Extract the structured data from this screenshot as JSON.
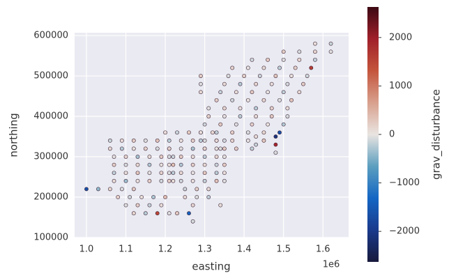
{
  "chart_data": {
    "type": "scatter",
    "xlabel": "easting",
    "ylabel": "northing",
    "x_offset_label": "1e6",
    "xlim": [
      970000,
      1665000
    ],
    "ylim": [
      100000,
      607000
    ],
    "xticks": [
      {
        "value": 1000000,
        "label": "1.0"
      },
      {
        "value": 1100000,
        "label": "1.1"
      },
      {
        "value": 1200000,
        "label": "1.2"
      },
      {
        "value": 1300000,
        "label": "1.3"
      },
      {
        "value": 1400000,
        "label": "1.4"
      },
      {
        "value": 1500000,
        "label": "1.5"
      },
      {
        "value": 1600000,
        "label": "1.6"
      }
    ],
    "yticks": [
      100000,
      200000,
      300000,
      400000,
      500000,
      600000
    ],
    "grid": true,
    "background": "#eaeaf2",
    "grid_color": "#ffffff",
    "edgecolor": "#3b2438",
    "colorbar": {
      "label": "grav_disturbance",
      "lim": [
        -2630,
        2630
      ],
      "ticks": [
        {
          "value": -2000,
          "label": "−2000"
        },
        {
          "value": -1000,
          "label": "−1000"
        },
        0,
        1000,
        2000
      ],
      "colors": [
        "#171a3c",
        "#1a3a8c",
        "#1466c4",
        "#5c9fbf",
        "#e9e4e1",
        "#d8a08d",
        "#c4553c",
        "#a0202a",
        "#3c0913"
      ]
    },
    "x": [
      1060000,
      1090000,
      1120000,
      1150000,
      1180000,
      1060000,
      1090000,
      1120000,
      1150000,
      1180000,
      1210000,
      1070000,
      1100000,
      1130000,
      1160000,
      1190000,
      1220000,
      1070000,
      1100000,
      1130000,
      1160000,
      1190000,
      1220000,
      1070000,
      1100000,
      1130000,
      1160000,
      1190000,
      1220000,
      1070000,
      1100000,
      1130000,
      1160000,
      1190000,
      1220000,
      1000000,
      1030000,
      1060000,
      1090000,
      1120000,
      1080000,
      1110000,
      1140000,
      1170000,
      1200000,
      1100000,
      1130000,
      1160000,
      1190000,
      1120000,
      1150000,
      1180000,
      1210000,
      1200000,
      1230000,
      1260000,
      1290000,
      1320000,
      1210000,
      1240000,
      1270000,
      1300000,
      1330000,
      1350000,
      1210000,
      1240000,
      1270000,
      1300000,
      1330000,
      1350000,
      1210000,
      1240000,
      1270000,
      1300000,
      1330000,
      1350000,
      1210000,
      1240000,
      1270000,
      1300000,
      1330000,
      1350000,
      1210000,
      1240000,
      1270000,
      1300000,
      1330000,
      1350000,
      1210000,
      1240000,
      1270000,
      1300000,
      1330000,
      1350000,
      1250000,
      1280000,
      1310000,
      1250000,
      1280000,
      1310000,
      1230000,
      1260000,
      1270000,
      1270000,
      1340000,
      1300000,
      1340000,
      1380000,
      1420000,
      1290000,
      1330000,
      1370000,
      1410000,
      1450000,
      1290000,
      1330000,
      1370000,
      1410000,
      1450000,
      1490000,
      1300000,
      1340000,
      1380000,
      1420000,
      1460000,
      1500000,
      1310000,
      1350000,
      1390000,
      1430000,
      1470000,
      1510000,
      1310000,
      1350000,
      1390000,
      1430000,
      1470000,
      1510000,
      1330000,
      1370000,
      1410000,
      1450000,
      1490000,
      1520000,
      1340000,
      1380000,
      1420000,
      1460000,
      1500000,
      1540000,
      1350000,
      1390000,
      1430000,
      1470000,
      1510000,
      1550000,
      1360000,
      1400000,
      1440000,
      1480000,
      1520000,
      1560000,
      1370000,
      1410000,
      1450000,
      1490000,
      1530000,
      1570000,
      1420000,
      1460000,
      1500000,
      1540000,
      1580000,
      1500000,
      1540000,
      1580000,
      1620000,
      1580000,
      1620000,
      1480000,
      1480000,
      1480000,
      1290000,
      1290000,
      1290000,
      1430000,
      1430000
    ],
    "y": [
      340000,
      340000,
      340000,
      340000,
      340000,
      320000,
      320000,
      320000,
      320000,
      320000,
      320000,
      300000,
      300000,
      300000,
      300000,
      300000,
      300000,
      280000,
      280000,
      280000,
      280000,
      280000,
      280000,
      260000,
      260000,
      260000,
      260000,
      260000,
      260000,
      240000,
      240000,
      240000,
      240000,
      240000,
      240000,
      220000,
      220000,
      220000,
      220000,
      220000,
      200000,
      200000,
      200000,
      200000,
      200000,
      180000,
      180000,
      180000,
      180000,
      160000,
      160000,
      160000,
      160000,
      360000,
      360000,
      360000,
      360000,
      360000,
      340000,
      340000,
      340000,
      340000,
      340000,
      340000,
      320000,
      320000,
      320000,
      320000,
      320000,
      320000,
      300000,
      300000,
      300000,
      300000,
      300000,
      300000,
      280000,
      280000,
      280000,
      280000,
      280000,
      280000,
      260000,
      260000,
      260000,
      260000,
      260000,
      260000,
      240000,
      240000,
      240000,
      240000,
      240000,
      240000,
      220000,
      220000,
      220000,
      200000,
      200000,
      200000,
      160000,
      160000,
      140000,
      180000,
      180000,
      320000,
      320000,
      320000,
      320000,
      340000,
      340000,
      340000,
      340000,
      340000,
      360000,
      360000,
      360000,
      360000,
      360000,
      360000,
      380000,
      380000,
      380000,
      380000,
      380000,
      380000,
      400000,
      400000,
      400000,
      400000,
      400000,
      400000,
      420000,
      420000,
      420000,
      420000,
      420000,
      420000,
      440000,
      440000,
      440000,
      440000,
      440000,
      440000,
      460000,
      460000,
      460000,
      460000,
      460000,
      460000,
      480000,
      480000,
      480000,
      480000,
      480000,
      480000,
      500000,
      500000,
      500000,
      500000,
      500000,
      500000,
      520000,
      520000,
      520000,
      520000,
      520000,
      520000,
      540000,
      540000,
      540000,
      540000,
      540000,
      560000,
      560000,
      560000,
      560000,
      580000,
      580000,
      310000,
      330000,
      350000,
      460000,
      480000,
      500000,
      330000,
      350000
    ],
    "color_values": [
      -150,
      90,
      230,
      -60,
      310,
      120,
      -240,
      40,
      180,
      -90,
      260,
      -30,
      150,
      -310,
      70,
      220,
      -140,
      200,
      -80,
      110,
      -260,
      30,
      340,
      -190,
      60,
      280,
      -40,
      150,
      -220,
      90,
      -350,
      20,
      190,
      -110,
      60,
      -1650,
      -420,
      130,
      -70,
      240,
      170,
      -130,
      50,
      -280,
      360,
      -60,
      210,
      -170,
      80,
      140,
      -230,
      1500,
      -50,
      80,
      -160,
      240,
      -1800,
      120,
      -210,
      50,
      190,
      -70,
      300,
      -120,
      160,
      -40,
      -290,
      130,
      20,
      250,
      -100,
      230,
      70,
      -190,
      140,
      -30,
      40,
      -260,
      180,
      90,
      -150,
      210,
      -80,
      120,
      -20,
      270,
      -230,
      60,
      190,
      -110,
      30,
      -170,
      320,
      -60,
      -140,
      200,
      90,
      110,
      -70,
      -200,
      260,
      -1400,
      -90,
      150,
      70,
      130,
      -50,
      240,
      -180,
      -220,
      90,
      160,
      -30,
      280,
      50,
      -190,
      210,
      -80,
      130,
      -1700,
      -120,
      240,
      -60,
      170,
      20,
      -250,
      180,
      -30,
      -210,
      100,
      260,
      -90,
      -40,
      150,
      60,
      -230,
      190,
      80,
      220,
      -130,
      30,
      140,
      -70,
      300,
      -160,
      70,
      250,
      -20,
      -190,
      110,
      90,
      -240,
      140,
      60,
      -100,
      230,
      -70,
      190,
      -150,
      280,
      40,
      -120,
      160,
      -20,
      100,
      -200,
      210,
      1600,
      -110,
      250,
      -60,
      130,
      -180,
      200,
      -90,
      150,
      -40,
      60,
      -140,
      -80,
      1900,
      -2100,
      120,
      -60,
      210,
      -170,
      90
    ]
  }
}
